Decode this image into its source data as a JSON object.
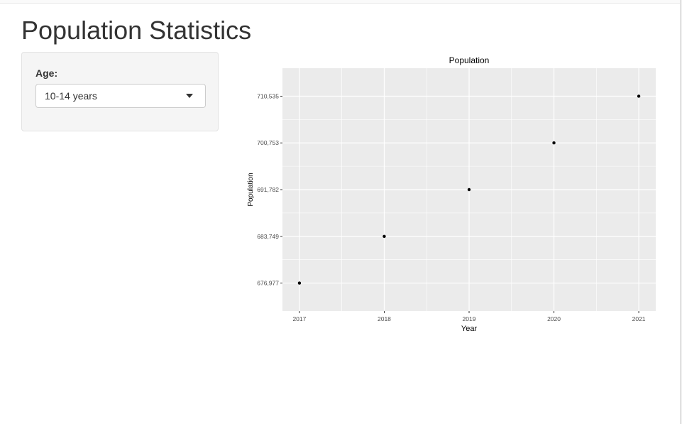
{
  "page": {
    "title": "Population Statistics"
  },
  "sidebar": {
    "age_label": "Age:",
    "age_select": {
      "value": "10-14 years",
      "icon": "chevron-down-icon"
    }
  },
  "chart_data": {
    "type": "scatter",
    "title": "Population",
    "xlabel": "Year",
    "ylabel": "Population",
    "x": [
      2017,
      2018,
      2019,
      2020,
      2021
    ],
    "y": [
      676977,
      683749,
      691782,
      700753,
      710535
    ],
    "x_ticks": [
      "2017",
      "2018",
      "2019",
      "2020",
      "2021"
    ],
    "y_ticks": [
      "676,977",
      "683,749",
      "691,782",
      "700,753",
      "710,535"
    ],
    "xlim": [
      2016.8,
      2021.2
    ],
    "grid": true,
    "panel_background": "#ebebeb",
    "grid_color": "#ffffff",
    "point_color": "#000000"
  }
}
